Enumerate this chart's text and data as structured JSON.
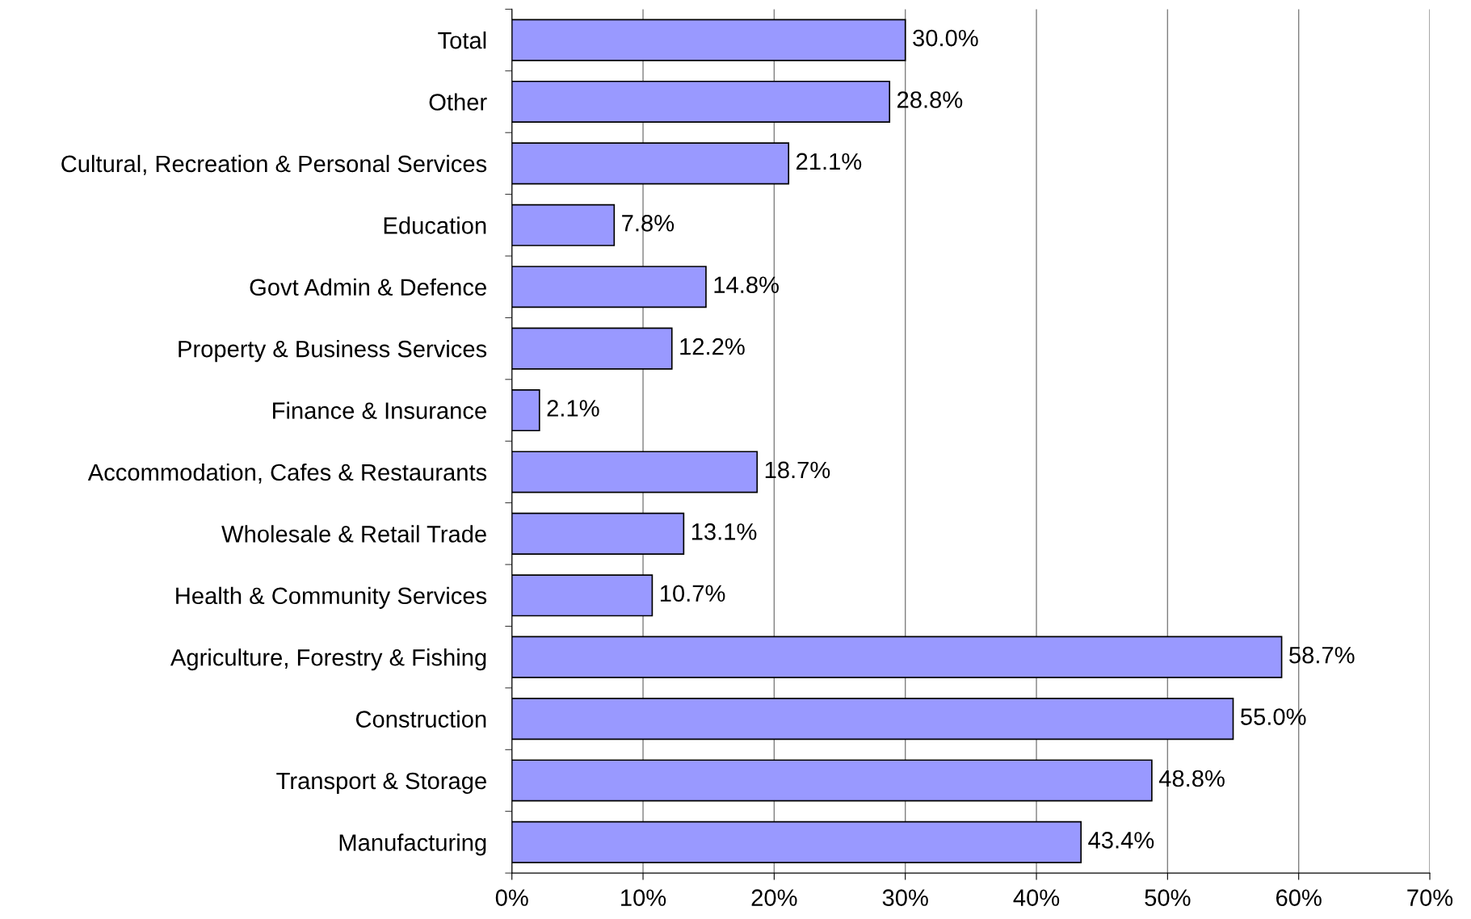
{
  "chart_data": {
    "type": "bar",
    "orientation": "horizontal",
    "categories": [
      "Total",
      "Other",
      "Cultural, Recreation & Personal Services",
      "Education",
      "Govt Admin & Defence",
      "Property & Business Services",
      "Finance & Insurance",
      "Accommodation, Cafes & Restaurants",
      "Wholesale & Retail Trade",
      "Health & Community Services",
      "Agriculture, Forestry & Fishing",
      "Construction",
      "Transport & Storage",
      "Manufacturing"
    ],
    "values": [
      30.0,
      28.8,
      21.1,
      7.8,
      14.8,
      12.2,
      2.1,
      18.7,
      13.1,
      10.7,
      58.7,
      55.0,
      48.8,
      43.4
    ],
    "value_labels": [
      "30.0%",
      "28.8%",
      "21.1%",
      "7.8%",
      "14.8%",
      "12.2%",
      "2.1%",
      "18.7%",
      "13.1%",
      "10.7%",
      "58.7%",
      "55.0%",
      "48.8%",
      "43.4%"
    ],
    "color": "#9999ff",
    "xlim": [
      0,
      70
    ],
    "xticks": [
      {
        "value": 0,
        "label": "0%"
      },
      {
        "value": 10,
        "label": "10%"
      },
      {
        "value": 20,
        "label": "20%"
      },
      {
        "value": 30,
        "label": "30%"
      },
      {
        "value": 40,
        "label": "40%"
      },
      {
        "value": 50,
        "label": "50%"
      },
      {
        "value": 60,
        "label": "60%"
      },
      {
        "value": 70,
        "label": "70%"
      }
    ],
    "grid": "x"
  }
}
